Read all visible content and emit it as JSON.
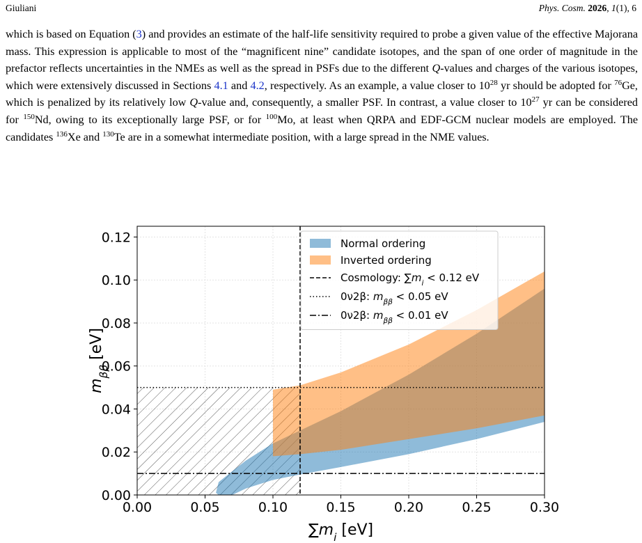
{
  "header": {
    "author": "Giuliani",
    "journal": "Phys. Cosm.",
    "year": "2026",
    "volume": "1",
    "issue_page": "(1), 6"
  },
  "paragraph": [
    "which is based on Equation (",
    "3",
    ") and provides an estimate of the half-life sensitivity required to probe a given value of the effective Majorana mass. This expression is applicable to most of the “magnificent nine” candidate isotopes, and the span of one order of magnitude in the prefactor reflects uncertainties in the NMEs as well as the spread in PSFs due to the different ",
    "Q",
    "-values and charges of the various isotopes, which were extensively discussed in Sections ",
    "4.1",
    " and ",
    "4.2",
    ", respectively. As an example, a value closer to 10",
    "28",
    " yr should be adopted for ",
    "76",
    "Ge, which is penalized by its relatively low ",
    "Q",
    "-value and, consequently, a smaller PSF. In contrast, a value closer to 10",
    "27",
    " yr can be considered for ",
    "150",
    "Nd, owing to its exceptionally large PSF, or for ",
    "100",
    "Mo, at least when QRPA and EDF-GCM nuclear models are employed. The candidates ",
    "136",
    "Xe and ",
    "130",
    "Te are in a somewhat intermediate position, with a large spread in the NME values."
  ],
  "chart_data": {
    "type": "band",
    "xlabel": [
      {
        "text": "∑",
        "style": "plain"
      },
      {
        "text": "m",
        "style": "italic"
      },
      {
        "text": "i",
        "style": "sub"
      },
      {
        "text": " [eV]",
        "style": "plain"
      }
    ],
    "ylabel": [
      {
        "text": "m",
        "style": "italic"
      },
      {
        "text": "ββ",
        "style": "sub"
      },
      {
        "text": " [eV]",
        "style": "plain"
      }
    ],
    "xlim": [
      0,
      0.3
    ],
    "ylim": [
      0,
      0.125
    ],
    "xticks": [
      {
        "value": 0,
        "label": "0.00"
      },
      {
        "value": 0.05,
        "label": "0.05"
      },
      {
        "value": 0.1,
        "label": "0.10"
      },
      {
        "value": 0.15,
        "label": "0.15"
      },
      {
        "value": 0.2,
        "label": "0.20"
      },
      {
        "value": 0.25,
        "label": "0.25"
      },
      {
        "value": 0.3,
        "label": "0.30"
      }
    ],
    "yticks": [
      {
        "value": 0,
        "label": "0.00"
      },
      {
        "value": 0.02,
        "label": "0.02"
      },
      {
        "value": 0.04,
        "label": "0.04"
      },
      {
        "value": 0.06,
        "label": "0.06"
      },
      {
        "value": 0.08,
        "label": "0.08"
      },
      {
        "value": 0.1,
        "label": "0.10"
      },
      {
        "value": 0.12,
        "label": "0.12"
      }
    ],
    "grid": true,
    "legend": "upper right",
    "series": [
      {
        "name": "Normal ordering",
        "color": "#1f77b4",
        "x": [
          0.058,
          0.06,
          0.07,
          0.08,
          0.1,
          0.12,
          0.15,
          0.2,
          0.25,
          0.3
        ],
        "upper": [
          0.001,
          0.006,
          0.011,
          0.016,
          0.024,
          0.03,
          0.039,
          0.056,
          0.075,
          0.096
        ],
        "lower": [
          0.001,
          0,
          0,
          0.003,
          0.007,
          0.0095,
          0.013,
          0.019,
          0.026,
          0.034
        ]
      },
      {
        "name": "Inverted ordering",
        "color": "#ff7f0e",
        "x": [
          0.1,
          0.12,
          0.15,
          0.2,
          0.25,
          0.3
        ],
        "upper": [
          0.049,
          0.051,
          0.057,
          0.07,
          0.086,
          0.104
        ],
        "lower": [
          0.018,
          0.019,
          0.021,
          0.026,
          0.031,
          0.037
        ]
      }
    ],
    "lines": [
      {
        "axis": "x",
        "value": 0.12,
        "linestyle": "dashed",
        "label": [
          {
            "text": "Cosmology: ∑",
            "style": "plain"
          },
          {
            "text": "m",
            "style": "italic"
          },
          {
            "text": "i",
            "style": "sub"
          },
          {
            "text": " < 0.12 eV",
            "style": "plain"
          }
        ]
      },
      {
        "axis": "y",
        "value": 0.05,
        "linestyle": "dotted",
        "label": [
          {
            "text": "0ν2β: ",
            "style": "plain"
          },
          {
            "text": "m",
            "style": "italic"
          },
          {
            "text": "ββ",
            "style": "sub"
          },
          {
            "text": " < 0.05 eV",
            "style": "plain"
          }
        ]
      },
      {
        "axis": "y",
        "value": 0.01,
        "linestyle": "dashdot",
        "label": [
          {
            "text": "0ν2β: ",
            "style": "plain"
          },
          {
            "text": "m",
            "style": "italic"
          },
          {
            "text": "ββ",
            "style": "sub"
          },
          {
            "text": " < 0.01 eV",
            "style": "plain"
          }
        ]
      }
    ]
  }
}
